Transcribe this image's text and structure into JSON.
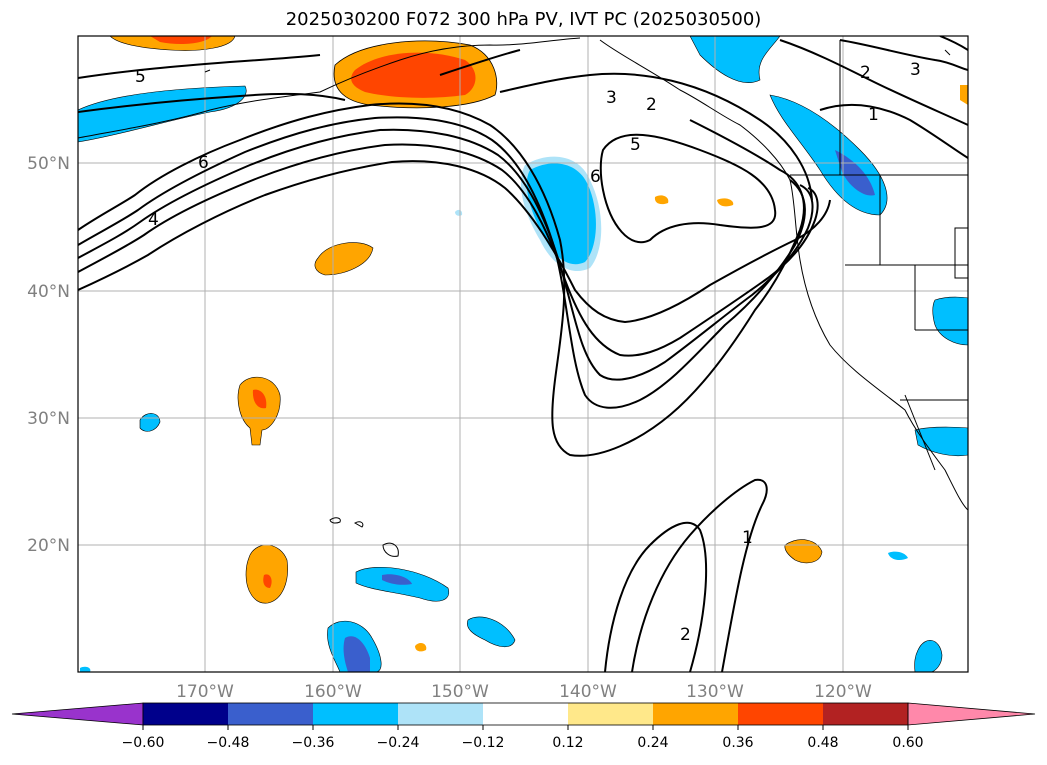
{
  "title": "2025030200 F072 300 hPa PV, IVT PC (2025030500)",
  "lat_labels": [
    "50°N",
    "40°N",
    "30°N",
    "20°N"
  ],
  "lon_labels": [
    "170°W",
    "160°W",
    "150°W",
    "140°W",
    "130°W",
    "120°W"
  ],
  "contour_labels": [
    "5",
    "6",
    "4",
    "3",
    "2",
    "5",
    "6",
    "2",
    "3",
    "1",
    "1",
    "2"
  ],
  "colorbar": {
    "ticks": [
      "−0.60",
      "−0.48",
      "−0.36",
      "−0.24",
      "−0.12",
      "0.12",
      "0.24",
      "0.36",
      "0.48",
      "0.60"
    ],
    "colors": [
      "#9933cc",
      "#00008b",
      "#3a5fcd",
      "#00bfff",
      "#aee3f8",
      "#ffffff",
      "#ffe88a",
      "#ffa500",
      "#ff4500",
      "#b22222",
      "#ff88aa"
    ]
  }
}
